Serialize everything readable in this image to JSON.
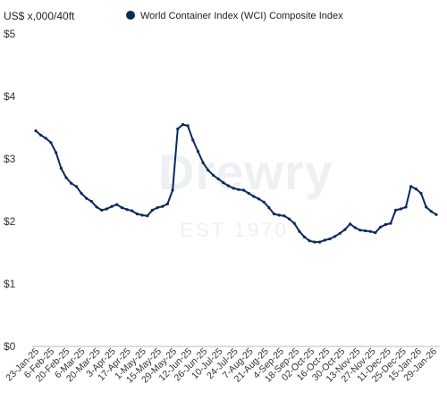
{
  "chart_data": {
    "type": "line",
    "ylabel": "US$ x,000/40ft",
    "yticks": [
      "$5",
      "$4",
      "$3",
      "$2",
      "$1",
      "$0"
    ],
    "ylim": [
      0,
      5
    ],
    "grid": false,
    "legend": {
      "position": "top",
      "marker_color": "#0a2a5c"
    },
    "watermark": {
      "brand": "Drewry",
      "tagline": "EST 1970"
    },
    "x_tick_labels": [
      "23-Jan-25",
      "6-Feb-25",
      "20-Feb-25",
      "6-Mar-25",
      "20-Mar-25",
      "3-Apr-25",
      "17-Apr-25",
      "1-May-25",
      "15-May-25",
      "29-May-25",
      "12-Jun-25",
      "26-Jun-25",
      "10-Jul-25",
      "24-Jul-25",
      "7-Aug-25",
      "21-Aug-25",
      "4-Sep-25",
      "18-Sep-25",
      "02-Oct-25",
      "16-Oct-25",
      "30-Oct-25",
      "13-Nov-25",
      "27-Nov-25",
      "11-Dec-25",
      "25-Dec-25",
      "15-Jan-26",
      "29-Jan-26"
    ],
    "series": [
      {
        "name": "World Container Index (WCI) Composite Index",
        "color": "#0a2a5c",
        "values": [
          3.45,
          3.38,
          3.33,
          3.26,
          3.1,
          2.85,
          2.7,
          2.61,
          2.56,
          2.45,
          2.37,
          2.32,
          2.23,
          2.18,
          2.2,
          2.24,
          2.27,
          2.22,
          2.19,
          2.17,
          2.12,
          2.1,
          2.09,
          2.18,
          2.22,
          2.24,
          2.28,
          2.5,
          3.48,
          3.55,
          3.53,
          3.3,
          3.12,
          2.94,
          2.82,
          2.74,
          2.68,
          2.62,
          2.57,
          2.53,
          2.51,
          2.5,
          2.45,
          2.4,
          2.36,
          2.31,
          2.22,
          2.12,
          2.1,
          2.09,
          2.04,
          1.97,
          1.84,
          1.75,
          1.69,
          1.67,
          1.67,
          1.7,
          1.72,
          1.76,
          1.81,
          1.87,
          1.96,
          1.9,
          1.86,
          1.85,
          1.84,
          1.82,
          1.91,
          1.95,
          1.97,
          2.18,
          2.2,
          2.23,
          2.56,
          2.52,
          2.45,
          2.23,
          2.16,
          2.11
        ]
      }
    ]
  }
}
